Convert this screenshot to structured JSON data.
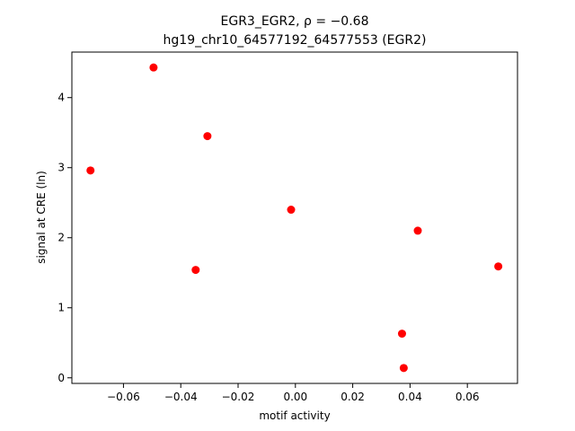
{
  "chart_data": {
    "type": "scatter",
    "title_line1": "EGR3_EGR2, ρ = −0.68",
    "title_line2": "hg19_chr10_64577192_64577553 (EGR2)",
    "xlabel": "motif activity",
    "ylabel": "signal at CRE (ln)",
    "xlim": [
      -0.078,
      0.0775
    ],
    "ylim": [
      -0.08,
      4.65
    ],
    "grid": false,
    "legend": "none",
    "marker_color": "#ff0000",
    "x_ticks": [
      {
        "value": -0.06,
        "label": "−0.06"
      },
      {
        "value": -0.04,
        "label": "−0.04"
      },
      {
        "value": -0.02,
        "label": "−0.02"
      },
      {
        "value": 0.0,
        "label": "0.00"
      },
      {
        "value": 0.02,
        "label": "0.02"
      },
      {
        "value": 0.04,
        "label": "0.04"
      },
      {
        "value": 0.06,
        "label": "0.06"
      }
    ],
    "y_ticks": [
      {
        "value": 0,
        "label": "0"
      },
      {
        "value": 1,
        "label": "1"
      },
      {
        "value": 2,
        "label": "2"
      },
      {
        "value": 3,
        "label": "3"
      },
      {
        "value": 4,
        "label": "4"
      }
    ],
    "points": [
      {
        "x": -0.0715,
        "y": 2.96
      },
      {
        "x": -0.0495,
        "y": 4.43
      },
      {
        "x": -0.0307,
        "y": 3.45
      },
      {
        "x": -0.0348,
        "y": 1.54
      },
      {
        "x": -0.0015,
        "y": 2.4
      },
      {
        "x": 0.0427,
        "y": 2.1
      },
      {
        "x": 0.0708,
        "y": 1.59
      },
      {
        "x": 0.0372,
        "y": 0.63
      },
      {
        "x": 0.0378,
        "y": 0.14
      }
    ]
  }
}
